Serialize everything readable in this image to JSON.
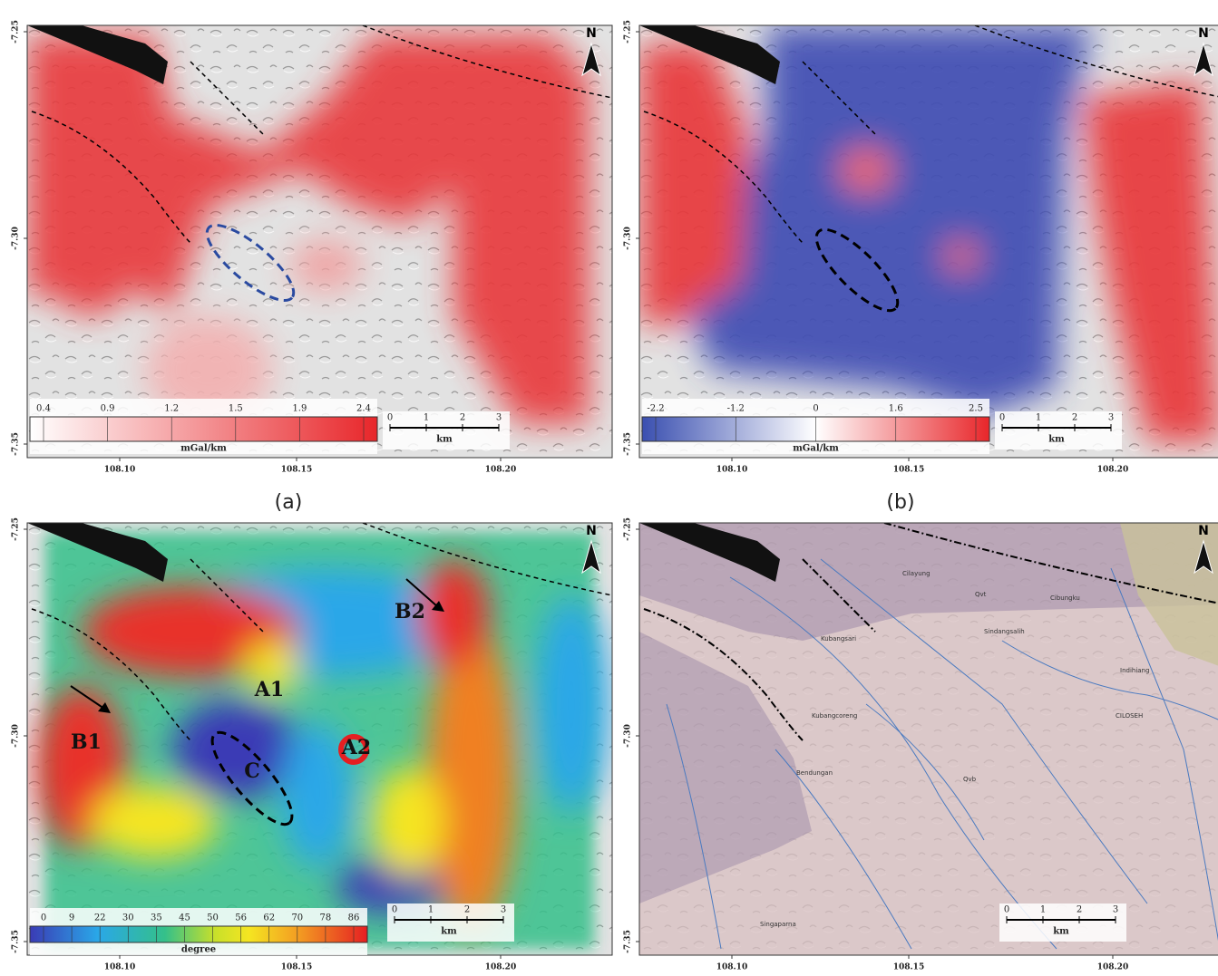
{
  "axes": {
    "x_ticks": [
      "108.10",
      "108.15",
      "108.20"
    ],
    "y_ticks": [
      "-7.25",
      "-7.30",
      "-7.35"
    ]
  },
  "north": "N",
  "scale": {
    "ticks": [
      "0",
      "1",
      "2",
      "3"
    ],
    "unit": "km"
  },
  "panels": [
    {
      "label": "(a)",
      "colorbar": {
        "ticks": [
          "0.4",
          "0.9",
          "1.2",
          "1.5",
          "1.9",
          "2.4"
        ],
        "unit": "mGal/km"
      }
    },
    {
      "label": "(b)",
      "colorbar": {
        "ticks": [
          "-2.2",
          "-1.2",
          "0",
          "1.6",
          "2.5"
        ],
        "unit": "mGal/km"
      }
    },
    {
      "colorbar": {
        "ticks": [
          "0",
          "9",
          "22",
          "30",
          "35",
          "45",
          "50",
          "56",
          "62",
          "70",
          "78",
          "86"
        ],
        "unit": "degree"
      },
      "annotations": [
        "A1",
        "A2",
        "B1",
        "B2",
        "C"
      ]
    },
    {
      "places": [
        "Cilayung",
        "Qvt",
        "Cibungku",
        "Kubangsari",
        "Sindangsalih",
        "Indihiang",
        "Kubangcoreng",
        "Bendungan",
        "Qvb",
        "CILOSEH",
        "Singaparna"
      ]
    }
  ]
}
